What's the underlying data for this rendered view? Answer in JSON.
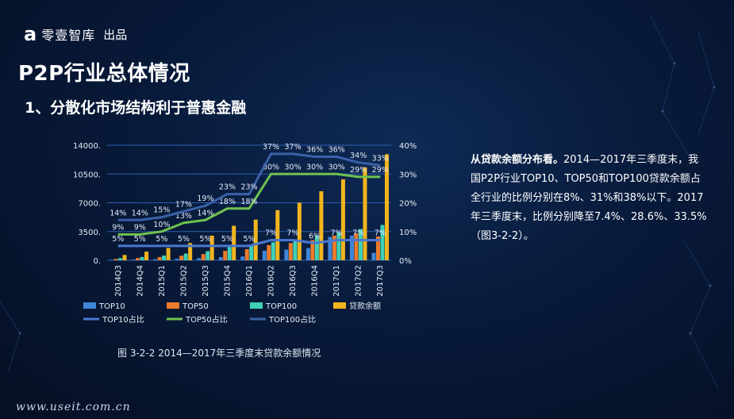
{
  "brand": {
    "logo": "a",
    "name": "零壹智库",
    "suffix": "出品"
  },
  "page_title": "P2P行业总体情况",
  "section_title": "1、分散化市场结构利于普惠金融",
  "caption": "图 3-2-2  2014—2017年三季度末贷款余额情况",
  "paragraph": {
    "lead": "从贷款余额分布看。",
    "body": "2014—2017年三季度末，我国P2P行业TOP10、TOP50和TOP100贷款余额占全行业的比例分别在8%、31%和38%以下。2017年三季度末，比例分别降至7.4%、28.6%、33.5%（图3-2-2）。"
  },
  "footer_url": "www.useit.com.cn",
  "colors": {
    "top10": "#3e87d8",
    "top50": "#ec7b2c",
    "top100": "#3fd1b5",
    "loan": "#f3b51d",
    "top10_share": "#4a78d0",
    "top50_share": "#6ec34f",
    "top100_share": "#3a61a8"
  },
  "chart_data": {
    "type": "bar",
    "categories": [
      "2014Q3",
      "2014Q4",
      "2015Q1",
      "2015Q2",
      "2015Q3",
      "2015Q4",
      "2016Q1",
      "2016Q2",
      "2016Q3",
      "2016Q4",
      "2017Q1",
      "2017Q2",
      "2017Q3"
    ],
    "y_left": {
      "ticks": [
        "0.",
        "3500.",
        "7000.",
        "10500.",
        "14000."
      ],
      "ylim": [
        0,
        14000
      ]
    },
    "y_right": {
      "ticks": [
        "0%",
        "10%",
        "20%",
        "30%",
        "40%"
      ],
      "ylim": [
        0,
        40
      ]
    },
    "series": [
      {
        "name": "TOP10",
        "type": "bar",
        "axis": "left",
        "values": [
          60,
          90,
          130,
          190,
          260,
          380,
          470,
          1150,
          1300,
          1480,
          2850,
          3000,
          900
        ]
      },
      {
        "name": "TOP50",
        "type": "bar",
        "axis": "left",
        "values": [
          170,
          270,
          390,
          560,
          760,
          1150,
          1350,
          1850,
          2100,
          2450,
          3000,
          3300,
          2900
        ]
      },
      {
        "name": "TOP100",
        "type": "bar",
        "axis": "left",
        "values": [
          260,
          400,
          580,
          820,
          1110,
          1600,
          1850,
          2200,
          2550,
          3000,
          3400,
          3800,
          4300
        ]
      },
      {
        "name": "贷款余额",
        "type": "bar",
        "axis": "left",
        "values": [
          650,
          1050,
          1500,
          2100,
          3000,
          4200,
          4950,
          6100,
          7000,
          8400,
          9850,
          11300,
          12900
        ]
      },
      {
        "name": "TOP10占比",
        "type": "line",
        "axis": "right",
        "values": [
          5,
          5,
          5,
          5,
          5,
          5,
          5,
          7,
          7,
          6,
          7,
          7,
          7
        ],
        "labels": [
          "5%",
          "5%",
          "5%",
          "5%",
          "5%",
          "5%",
          "5%",
          "7%",
          "7%",
          "6%",
          "7%",
          "7%",
          "7%"
        ]
      },
      {
        "name": "TOP50占比",
        "type": "line",
        "axis": "right",
        "values": [
          9,
          9,
          10,
          13,
          14,
          18,
          18,
          30,
          30,
          30,
          30,
          29,
          29
        ],
        "labels": [
          "9%",
          "9%",
          "10%",
          "13%",
          "14%",
          "18%",
          "18%",
          "30%",
          "30%",
          "30%",
          "30%",
          "29%",
          "29%"
        ]
      },
      {
        "name": "TOP100占比",
        "type": "line",
        "axis": "right",
        "values": [
          14,
          14,
          15,
          17,
          19,
          23,
          23,
          37,
          37,
          36,
          36,
          34,
          33
        ],
        "labels": [
          "14%",
          "14%",
          "15%",
          "17%",
          "19%",
          "23%",
          "23%",
          "37%",
          "37%",
          "36%",
          "36%",
          "34%",
          "33%"
        ]
      }
    ],
    "legend_position": "bottom",
    "grid": true
  }
}
